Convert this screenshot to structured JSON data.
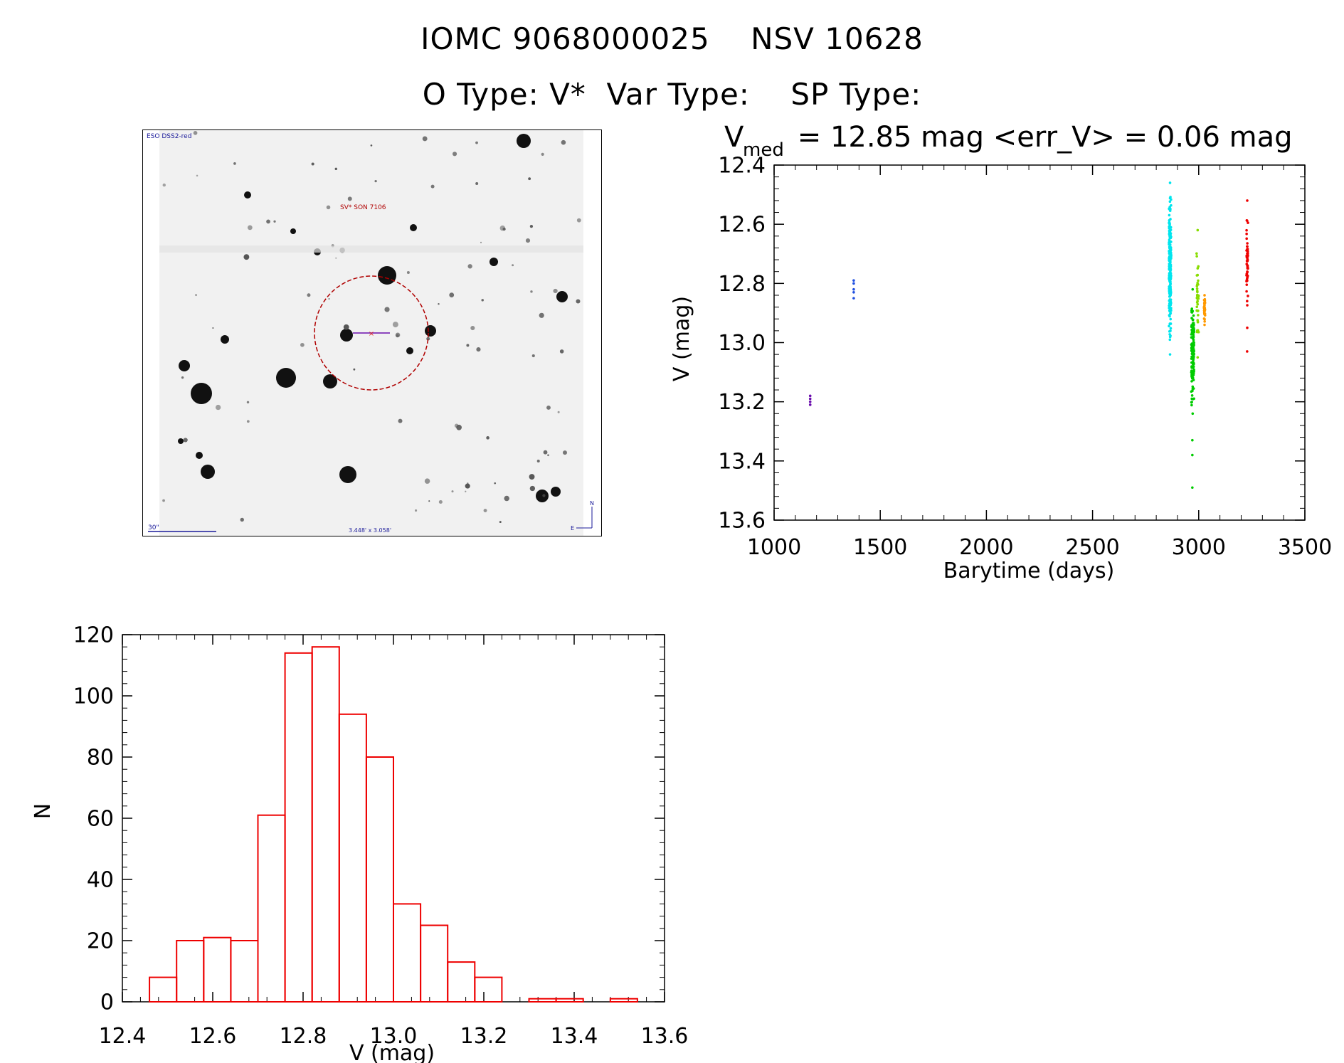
{
  "header": {
    "line1": "IOMC 9068000025    NSV 10628",
    "line2": "O Type: V*  Var Type:    SP Type:"
  },
  "finder": {
    "survey_label": "ESO DSS2-red",
    "object_label": "SV* SON 7106",
    "scale_label": "30\"",
    "fov_label": "3.448' x 3.058'",
    "north_label": "N",
    "east_label": "E"
  },
  "chart_data": [
    {
      "type": "scatter",
      "title_main": "V",
      "title_sub": "med",
      "title_rest": " = 12.85 mag <err_V> = 0.06 mag",
      "xlabel": "Barytime (days)",
      "ylabel": "V (mag)",
      "xlim": [
        1000,
        3500
      ],
      "ylim": [
        13.6,
        12.4
      ],
      "y_inverted": true,
      "xticks": [
        "1000",
        "1500",
        "2000",
        "2500",
        "3000",
        "3500"
      ],
      "yticks": [
        "12.4",
        "12.6",
        "12.8",
        "13.0",
        "13.2",
        "13.4",
        "13.6"
      ],
      "series": [
        {
          "color": "#6a0dad",
          "x": [
            1170,
            1170,
            1170,
            1170
          ],
          "y": [
            13.18,
            13.19,
            13.2,
            13.21
          ]
        },
        {
          "color": "#1f4fe0",
          "x": [
            1375,
            1375,
            1375,
            1375,
            1375
          ],
          "y": [
            12.79,
            12.8,
            12.82,
            12.83,
            12.85
          ]
        },
        {
          "color": "#00e5ee",
          "x_range": [
            2860,
            2870
          ],
          "y_range": [
            12.46,
            13.04
          ],
          "count": 200
        },
        {
          "color": "#00cc00",
          "x_range": [
            2965,
            2978
          ],
          "y_range": [
            12.82,
            13.24
          ],
          "count": 150,
          "extra": [
            [
              2970,
              13.33
            ],
            [
              2970,
              13.38
            ],
            [
              2970,
              13.49
            ]
          ]
        },
        {
          "color": "#88dd00",
          "x_range": [
            2990,
            3000
          ],
          "y_range": [
            12.62,
            13.05
          ],
          "count": 40
        },
        {
          "color": "#ff9900",
          "x_range": [
            3025,
            3030
          ],
          "y_range": [
            12.84,
            12.94
          ],
          "count": 30
        },
        {
          "color": "#ee0000",
          "x_range": [
            3225,
            3232
          ],
          "y_range": [
            12.52,
            12.95
          ],
          "count": 50,
          "extra": [
            [
              3228,
              13.03
            ]
          ]
        }
      ]
    },
    {
      "type": "bar",
      "xlabel": "V (mag)",
      "ylabel": "N",
      "xlim": [
        12.4,
        13.6
      ],
      "ylim": [
        0,
        120
      ],
      "xticks": [
        "12.4",
        "12.6",
        "12.8",
        "13.0",
        "13.2",
        "13.4",
        "13.6"
      ],
      "yticks": [
        "0",
        "20",
        "40",
        "60",
        "80",
        "100",
        "120"
      ],
      "bar_color": "#ee0000",
      "bins_start": 12.46,
      "bin_width": 0.06,
      "values": [
        8,
        20,
        21,
        20,
        61,
        114,
        116,
        94,
        80,
        32,
        25,
        13,
        8,
        0,
        1,
        1,
        0,
        1
      ]
    }
  ]
}
